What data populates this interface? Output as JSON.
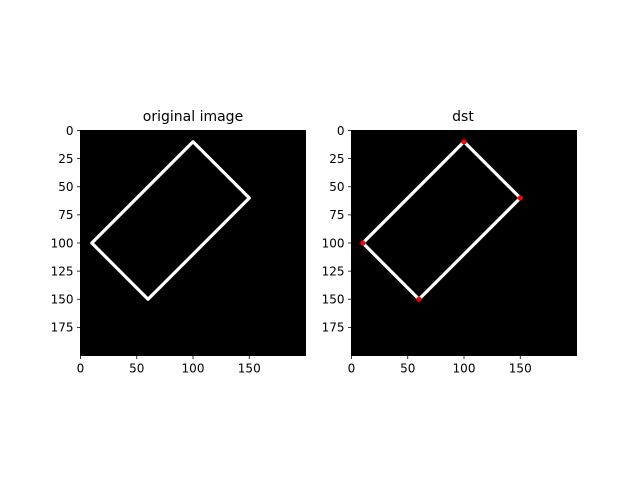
{
  "chart_data": [
    {
      "type": "image",
      "title": "original image",
      "image_size": [
        200,
        200
      ],
      "background": "#000000",
      "line_color": "#ffffff",
      "xlim": [
        0,
        200
      ],
      "ylim": [
        200,
        0
      ],
      "xticks": [
        0,
        50,
        100,
        150
      ],
      "yticks": [
        0,
        25,
        50,
        75,
        100,
        125,
        150,
        175
      ],
      "shape_vertices": [
        [
          100,
          10
        ],
        [
          150,
          60
        ],
        [
          60,
          150
        ],
        [
          10,
          100
        ]
      ],
      "corner_markers": []
    },
    {
      "type": "image",
      "title": "dst",
      "image_size": [
        200,
        200
      ],
      "background": "#000000",
      "line_color": "#ffffff",
      "marker_color": "#ff0000",
      "xlim": [
        0,
        200
      ],
      "ylim": [
        200,
        0
      ],
      "xticks": [
        0,
        50,
        100,
        150
      ],
      "yticks": [
        0,
        25,
        50,
        75,
        100,
        125,
        150,
        175
      ],
      "shape_vertices": [
        [
          100,
          10
        ],
        [
          150,
          60
        ],
        [
          60,
          150
        ],
        [
          10,
          100
        ]
      ],
      "corner_markers": [
        [
          100,
          10
        ],
        [
          150,
          60
        ],
        [
          60,
          150
        ],
        [
          10,
          100
        ]
      ]
    }
  ]
}
